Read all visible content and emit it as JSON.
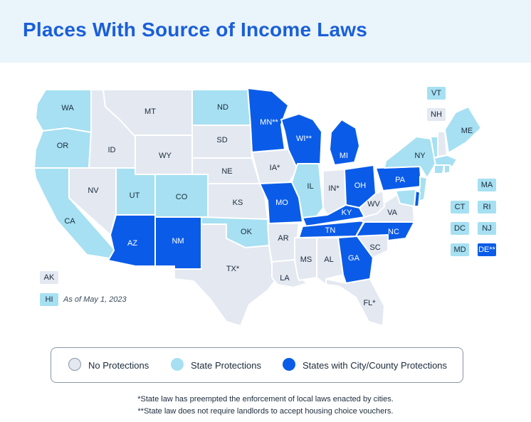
{
  "title": "Places With Source of Income Laws",
  "as_of": "As of May 1, 2023",
  "colors": {
    "no_protections": "#e3e8f1",
    "state_protections": "#a6e0f2",
    "city_county_protections": "#0a5ce8"
  },
  "legend": [
    {
      "key": "none",
      "label": "No Protections"
    },
    {
      "key": "state",
      "label": "State Protections"
    },
    {
      "key": "city",
      "label": "States with City/County Protections"
    }
  ],
  "states": {
    "WA": {
      "label": "WA",
      "status": "state"
    },
    "OR": {
      "label": "OR",
      "status": "state"
    },
    "CA": {
      "label": "CA",
      "status": "state"
    },
    "NV": {
      "label": "NV",
      "status": "none"
    },
    "ID": {
      "label": "ID",
      "status": "none"
    },
    "MT": {
      "label": "MT",
      "status": "none"
    },
    "WY": {
      "label": "WY",
      "status": "none"
    },
    "UT": {
      "label": "UT",
      "status": "state"
    },
    "CO": {
      "label": "CO",
      "status": "state"
    },
    "AZ": {
      "label": "AZ",
      "status": "city"
    },
    "NM": {
      "label": "NM",
      "status": "city"
    },
    "ND": {
      "label": "ND",
      "status": "state"
    },
    "SD": {
      "label": "SD",
      "status": "none"
    },
    "NE": {
      "label": "NE",
      "status": "none"
    },
    "KS": {
      "label": "KS",
      "status": "none"
    },
    "OK": {
      "label": "OK",
      "status": "state"
    },
    "TX": {
      "label": "TX*",
      "status": "none"
    },
    "MN": {
      "label": "MN**",
      "status": "city"
    },
    "IA": {
      "label": "IA*",
      "status": "none"
    },
    "MO": {
      "label": "MO",
      "status": "city"
    },
    "AR": {
      "label": "AR",
      "status": "none"
    },
    "LA": {
      "label": "LA",
      "status": "none"
    },
    "WI": {
      "label": "WI**",
      "status": "city"
    },
    "IL": {
      "label": "IL",
      "status": "state"
    },
    "MI": {
      "label": "MI",
      "status": "city"
    },
    "IN": {
      "label": "IN*",
      "status": "none"
    },
    "OH": {
      "label": "OH",
      "status": "city"
    },
    "KY": {
      "label": "KY",
      "status": "city"
    },
    "TN": {
      "label": "TN",
      "status": "city"
    },
    "MS": {
      "label": "MS",
      "status": "none"
    },
    "AL": {
      "label": "AL",
      "status": "none"
    },
    "GA": {
      "label": "GA",
      "status": "city"
    },
    "FL": {
      "label": "FL*",
      "status": "none"
    },
    "SC": {
      "label": "SC",
      "status": "none"
    },
    "NC": {
      "label": "NC",
      "status": "city"
    },
    "VA": {
      "label": "VA",
      "status": "none"
    },
    "WV": {
      "label": "WV",
      "status": "none"
    },
    "PA": {
      "label": "PA",
      "status": "city"
    },
    "NY": {
      "label": "NY",
      "status": "state"
    },
    "ME": {
      "label": "ME",
      "status": "state"
    },
    "VT": {
      "label": "VT",
      "status": "state"
    },
    "NH": {
      "label": "NH",
      "status": "none"
    },
    "MA": {
      "label": "MA",
      "status": "state"
    },
    "RI": {
      "label": "RI",
      "status": "state"
    },
    "CT": {
      "label": "CT",
      "status": "state"
    },
    "NJ": {
      "label": "NJ",
      "status": "state"
    },
    "DE": {
      "label": "DE**",
      "status": "city"
    },
    "MD": {
      "label": "MD",
      "status": "state"
    },
    "DC": {
      "label": "DC",
      "status": "state"
    },
    "AK": {
      "label": "AK",
      "status": "none"
    },
    "HI": {
      "label": "HI",
      "status": "state"
    }
  },
  "footnotes": [
    "*State law has preempted the enforcement of local laws enacted by cities.",
    "**State law does not require landlords to accept housing choice vouchers."
  ]
}
